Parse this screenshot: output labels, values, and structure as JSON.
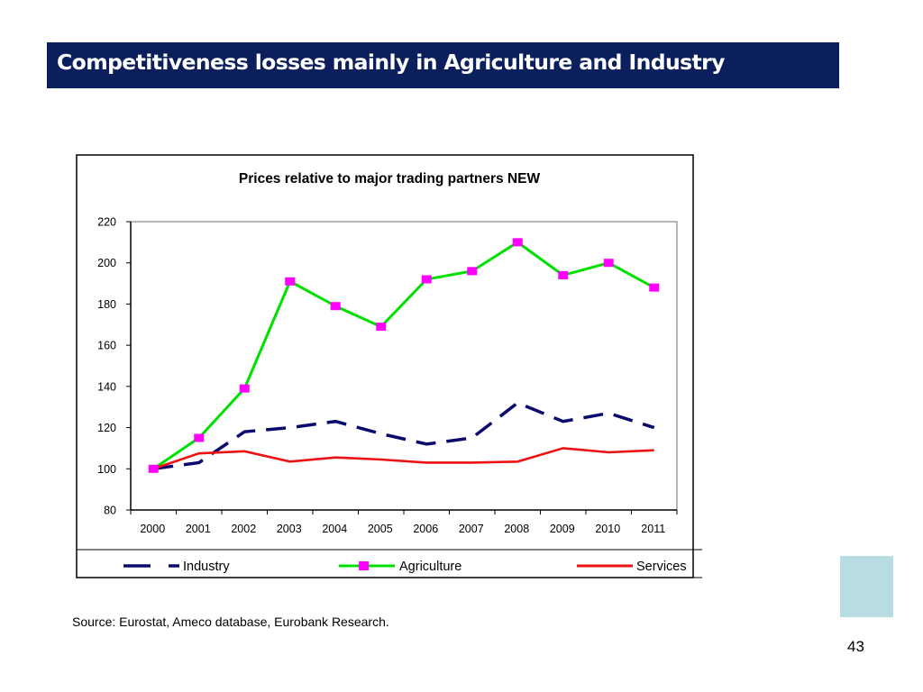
{
  "slide": {
    "title": "Competitiveness losses mainly in Agriculture and Industry",
    "source": "Source: Eurostat, Ameco database, Eurobank Research.",
    "page_number": "43",
    "colors": {
      "title_bar": "#0b1f5c",
      "decoration": "#b7dde3"
    }
  },
  "chart_data": {
    "type": "line",
    "title": "Prices relative to major trading partners NEW",
    "xlabel": "",
    "ylabel": "",
    "categories": [
      "2000",
      "2001",
      "2002",
      "2003",
      "2004",
      "2005",
      "2006",
      "2007",
      "2008",
      "2009",
      "2010",
      "2011"
    ],
    "ylim": [
      80,
      220
    ],
    "yticks": [
      80,
      100,
      120,
      140,
      160,
      180,
      200,
      220
    ],
    "grid": false,
    "legend_position": "bottom",
    "series": [
      {
        "name": "Industry",
        "color": "#0a0a6e",
        "style": "dashed",
        "marker": "none",
        "values": [
          100,
          103,
          118,
          120,
          123,
          117,
          112,
          115,
          132,
          123,
          127,
          120
        ]
      },
      {
        "name": "Agriculture",
        "color": "#00e000",
        "marker_color": "#ff00ff",
        "style": "solid",
        "marker": "square",
        "values": [
          100,
          115,
          139,
          191,
          179,
          169,
          192,
          196,
          210,
          194,
          200,
          188
        ]
      },
      {
        "name": "Services",
        "color": "#ee1111",
        "style": "solid",
        "marker": "none",
        "values": [
          100,
          107.5,
          108.5,
          103.5,
          105.5,
          104.5,
          103,
          103,
          103.5,
          110,
          108,
          109
        ]
      }
    ]
  }
}
